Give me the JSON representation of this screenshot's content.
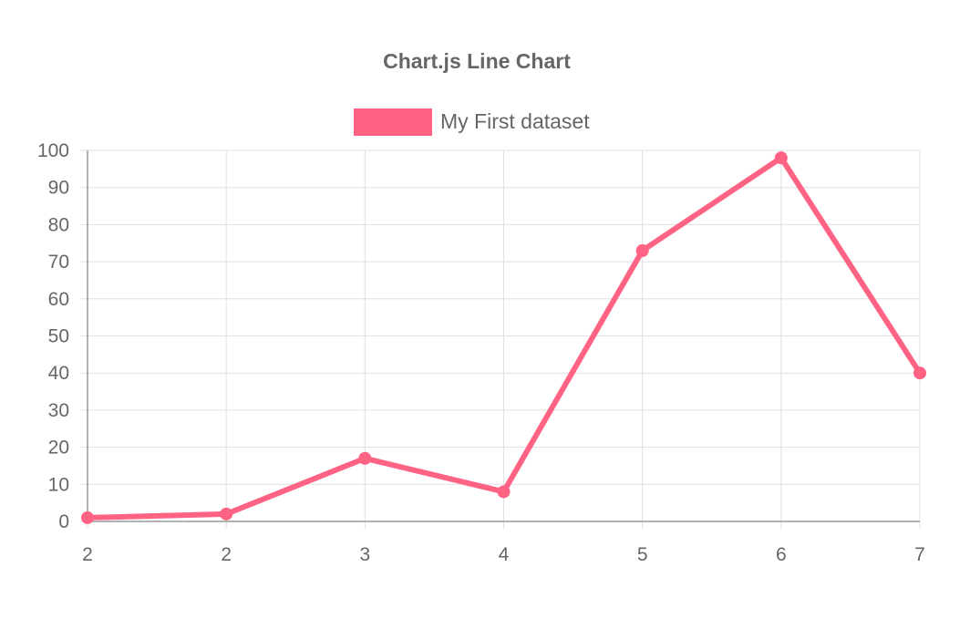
{
  "chart_data": {
    "type": "line",
    "title": "Chart.js Line Chart",
    "categories": [
      "2",
      "2",
      "3",
      "4",
      "5",
      "6",
      "7"
    ],
    "series": [
      {
        "name": "My First dataset",
        "values": [
          1,
          2,
          17,
          8,
          73,
          98,
          40
        ],
        "color": "#ff6384"
      }
    ],
    "y_ticks": [
      "0",
      "10",
      "20",
      "30",
      "40",
      "50",
      "60",
      "70",
      "80",
      "90",
      "100"
    ],
    "ylim": [
      0,
      100
    ],
    "grid": true,
    "legend_position": "top"
  },
  "colors": {
    "series": "#ff6384",
    "text": "#666666",
    "grid": "#e0e0e0",
    "axis": "#999999"
  }
}
